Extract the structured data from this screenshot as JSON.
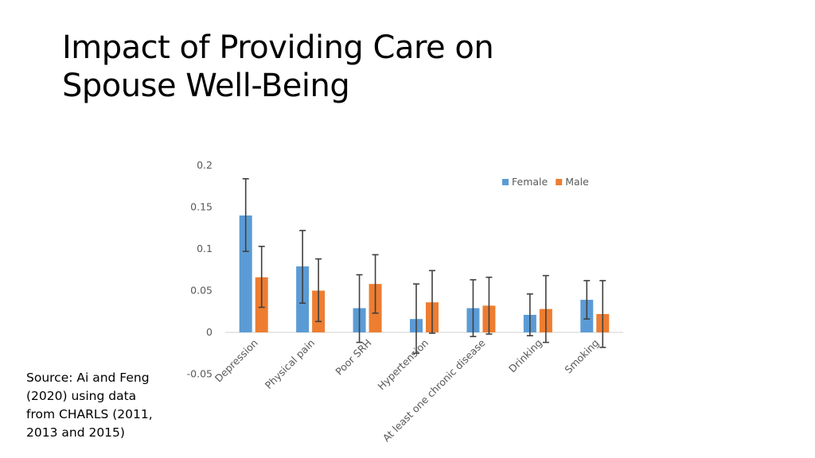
{
  "slide": {
    "title_lines": [
      "Impact of Providing Care on",
      "Spouse Well-Being"
    ],
    "source_lines": [
      "Source: Ai and Feng",
      "(2020) using data",
      "from CHARLS (2011,",
      "2013 and 2015)"
    ]
  },
  "chart_data": {
    "type": "bar",
    "title": "",
    "xlabel": "",
    "ylabel": "",
    "ylim": [
      -0.05,
      0.2
    ],
    "yticks": [
      -0.05,
      0,
      0.05,
      0.1,
      0.15,
      0.2
    ],
    "ytick_labels": [
      "-0.05",
      "0",
      "0.05",
      "0.1",
      "0.15",
      "0.2"
    ],
    "grid": false,
    "legend_position": "top-right",
    "categories": [
      "Depression",
      "Physical pain",
      "Poor SRH",
      "Hypertension",
      "At least one chronic disease",
      "Drinking",
      "Smoking"
    ],
    "series": [
      {
        "name": "Female",
        "color": "#5B9BD5",
        "values": [
          0.14,
          0.079,
          0.029,
          0.016,
          0.029,
          0.021,
          0.039
        ],
        "err_upper": [
          0.184,
          0.122,
          0.069,
          0.058,
          0.063,
          0.046,
          0.062
        ],
        "err_lower": [
          0.097,
          0.035,
          -0.012,
          -0.025,
          -0.005,
          -0.004,
          0.016
        ]
      },
      {
        "name": "Male",
        "color": "#ED7D31",
        "values": [
          0.066,
          0.05,
          0.058,
          0.036,
          0.032,
          0.028,
          0.022
        ],
        "err_upper": [
          0.103,
          0.088,
          0.093,
          0.074,
          0.066,
          0.068,
          0.062
        ],
        "err_lower": [
          0.03,
          0.013,
          0.023,
          -0.001,
          -0.002,
          -0.012,
          -0.018
        ]
      }
    ]
  }
}
